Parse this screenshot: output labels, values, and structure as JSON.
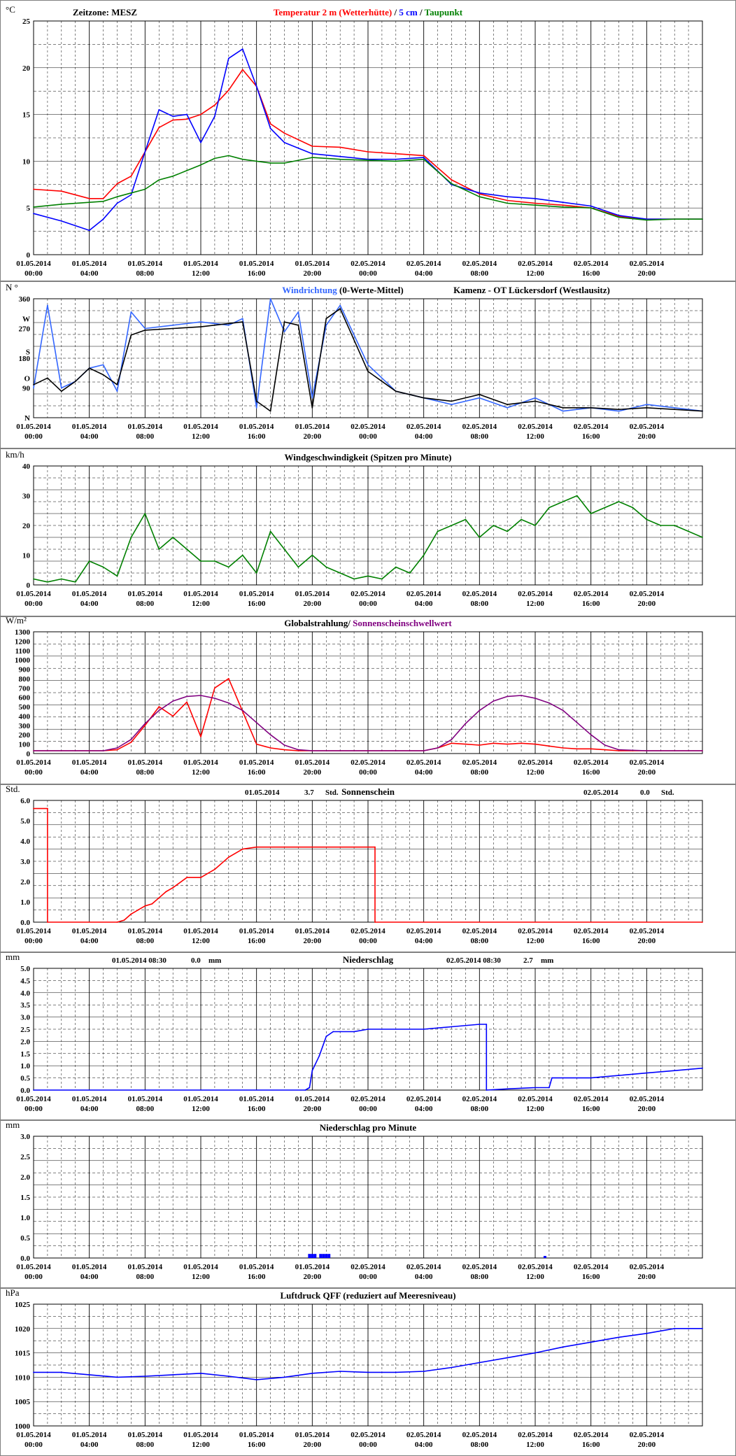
{
  "x_ticks": [
    [
      "01.05.2014",
      "00:00"
    ],
    [
      "01.05.2014",
      "04:00"
    ],
    [
      "01.05.2014",
      "08:00"
    ],
    [
      "01.05.2014",
      "12:00"
    ],
    [
      "01.05.2014",
      "16:00"
    ],
    [
      "01.05.2014",
      "20:00"
    ],
    [
      "02.05.2014",
      "00:00"
    ],
    [
      "02.05.2014",
      "04:00"
    ],
    [
      "02.05.2014",
      "08:00"
    ],
    [
      "02.05.2014",
      "12:00"
    ],
    [
      "02.05.2014",
      "16:00"
    ],
    [
      "02.05.2014",
      "20:00"
    ]
  ],
  "colors": {
    "red": "#ff0000",
    "blue": "#0000ff",
    "lightblue": "#3366ff",
    "green": "#008000",
    "black": "#000000",
    "purple": "#800080",
    "divider": "#808080"
  },
  "chart_data": [
    {
      "id": "temp",
      "type": "line",
      "unit": "°C",
      "header_left": "Zeitzone: MESZ",
      "title_parts": [
        {
          "text": "Temperatur 2 m (Wetterhütte)",
          "color": "#ff0000"
        },
        {
          "text": "  /  ",
          "color": "#000000"
        },
        {
          "text": "5 cm",
          "color": "#0000ff"
        },
        {
          "text": " / ",
          "color": "#000000"
        },
        {
          "text": "Taupunkt",
          "color": "#008000"
        }
      ],
      "ylim": [
        0,
        25
      ],
      "y_ticks": [
        "0",
        "5",
        "10",
        "15",
        "20",
        "25"
      ],
      "y_tick_values": [
        0,
        5,
        10,
        15,
        20,
        25
      ],
      "x_hours": [
        0,
        2,
        4,
        5,
        6,
        7,
        8,
        9,
        10,
        11,
        12,
        13,
        14,
        15,
        16,
        17,
        18,
        20,
        22,
        24,
        26,
        28,
        30,
        32,
        34,
        36,
        38,
        40,
        42,
        44,
        46,
        48
      ],
      "series": [
        {
          "color": "#ff0000",
          "values": [
            7,
            6.8,
            6,
            6,
            7.6,
            8.4,
            11,
            13.6,
            14.4,
            14.5,
            15,
            16,
            17.6,
            19.8,
            18,
            14,
            13,
            11.6,
            11.5,
            11,
            10.8,
            10.6,
            8,
            6.5,
            5.8,
            5.5,
            5.3,
            5,
            4.1,
            3.8,
            3.8,
            3.8
          ]
        },
        {
          "color": "#0000ff",
          "values": [
            4.4,
            3.6,
            2.6,
            3.8,
            5.5,
            6.4,
            11,
            15.5,
            14.8,
            15,
            12,
            14.8,
            21,
            22,
            18,
            13.5,
            12,
            10.8,
            10.5,
            10.2,
            10.2,
            10.4,
            7.5,
            6.6,
            6.2,
            6,
            5.6,
            5.2,
            4.2,
            3.8,
            3.8,
            3.8
          ]
        },
        {
          "color": "#008000",
          "values": [
            5.1,
            5.4,
            5.6,
            5.7,
            6.2,
            6.6,
            7,
            8,
            8.4,
            9,
            9.6,
            10.3,
            10.6,
            10.2,
            10,
            9.8,
            9.8,
            10.4,
            10.2,
            10.1,
            10,
            10.2,
            7.6,
            6.2,
            5.5,
            5.3,
            5.1,
            5,
            4,
            3.7,
            3.8,
            3.8
          ]
        }
      ]
    },
    {
      "id": "winddir",
      "type": "line",
      "unit": "N °",
      "title_parts": [
        {
          "text": "Windrichtung",
          "color": "#3366ff"
        },
        {
          "text": " (0-Werte-Mittel)",
          "color": "#000000"
        }
      ],
      "title_right": "Kamenz - OT Lückersdorf (Westlausitz)",
      "ylim": [
        0,
        360
      ],
      "y_ticks": [
        "N",
        "90",
        "O",
        "180",
        "S",
        "270",
        "W",
        "360"
      ],
      "y_tick_values": [
        0,
        90,
        120,
        180,
        200,
        270,
        300,
        360
      ],
      "x_hours": [
        0,
        1,
        2,
        3,
        4,
        5,
        6,
        7,
        8,
        10,
        12,
        14,
        15,
        16,
        17,
        18,
        19,
        20,
        21,
        22,
        24,
        26,
        28,
        30,
        32,
        34,
        36,
        38,
        40,
        42,
        44,
        46,
        48
      ],
      "series": [
        {
          "color": "#3366ff",
          "values": [
            90,
            340,
            90,
            110,
            150,
            160,
            80,
            320,
            270,
            280,
            290,
            280,
            300,
            30,
            360,
            260,
            320,
            60,
            280,
            340,
            160,
            80,
            60,
            40,
            60,
            30,
            60,
            20,
            30,
            20,
            40,
            30,
            20
          ]
        },
        {
          "color": "#000000",
          "values": [
            100,
            120,
            80,
            110,
            150,
            130,
            100,
            250,
            265,
            270,
            275,
            285,
            290,
            50,
            20,
            290,
            280,
            30,
            300,
            330,
            140,
            80,
            60,
            50,
            70,
            40,
            50,
            30,
            30,
            25,
            30,
            25,
            20
          ]
        }
      ]
    },
    {
      "id": "windspeed",
      "type": "line",
      "unit": "km/h",
      "title_parts": [
        {
          "text": "Windgeschwindigkeit (Spitzen pro Minute)",
          "color": "#000000"
        }
      ],
      "ylim": [
        0,
        40
      ],
      "y_ticks": [
        "0",
        "10",
        "20",
        "30",
        "40"
      ],
      "y_tick_values": [
        0,
        10,
        20,
        30,
        40
      ],
      "x_hours": [
        0,
        1,
        2,
        3,
        4,
        5,
        6,
        7,
        8,
        9,
        10,
        11,
        12,
        13,
        14,
        15,
        16,
        17,
        18,
        19,
        20,
        21,
        22,
        23,
        24,
        25,
        26,
        27,
        28,
        29,
        30,
        31,
        32,
        33,
        34,
        35,
        36,
        37,
        38,
        39,
        40,
        41,
        42,
        43,
        44,
        45,
        46,
        47,
        48
      ],
      "series": [
        {
          "color": "#008000",
          "values": [
            2,
            1,
            2,
            1,
            8,
            6,
            3,
            16,
            24,
            12,
            16,
            12,
            8,
            8,
            6,
            10,
            4,
            18,
            12,
            6,
            10,
            6,
            4,
            2,
            3,
            2,
            6,
            4,
            10,
            18,
            20,
            22,
            16,
            20,
            18,
            22,
            20,
            26,
            28,
            30,
            24,
            26,
            28,
            26,
            22,
            20,
            20,
            18,
            16
          ]
        }
      ]
    },
    {
      "id": "solar",
      "type": "line",
      "unit": "W/m²",
      "title_parts": [
        {
          "text": "Globalstrahlung/ ",
          "color": "#000000"
        },
        {
          "text": "Sonnenscheinschwellwert",
          "color": "#800080"
        }
      ],
      "ylim": [
        0,
        1300
      ],
      "y_ticks": [
        "0",
        "100",
        "200",
        "300",
        "400",
        "500",
        "600",
        "700",
        "800",
        "900",
        "1000",
        "1100",
        "1200",
        "1300"
      ],
      "y_tick_values": [
        0,
        100,
        200,
        300,
        400,
        500,
        600,
        700,
        800,
        900,
        1000,
        1100,
        1200,
        1300
      ],
      "x_hours": [
        0,
        5,
        6,
        7,
        8,
        9,
        10,
        11,
        12,
        13,
        14,
        15,
        16,
        17,
        18,
        19,
        20,
        24,
        28,
        29,
        30,
        31,
        32,
        33,
        34,
        35,
        36,
        37,
        38,
        39,
        40,
        41,
        42,
        44,
        48
      ],
      "series": [
        {
          "color": "#ff0000",
          "values": [
            30,
            30,
            40,
            120,
            300,
            500,
            400,
            550,
            180,
            700,
            800,
            450,
            100,
            60,
            40,
            30,
            30,
            30,
            30,
            60,
            110,
            100,
            90,
            110,
            100,
            110,
            100,
            80,
            60,
            50,
            50,
            40,
            30,
            30,
            30
          ]
        },
        {
          "color": "#800080",
          "values": [
            30,
            30,
            60,
            150,
            320,
            460,
            560,
            610,
            620,
            590,
            540,
            460,
            330,
            200,
            90,
            40,
            30,
            30,
            30,
            60,
            150,
            320,
            460,
            560,
            610,
            620,
            590,
            540,
            460,
            330,
            200,
            90,
            40,
            30,
            30
          ]
        }
      ]
    },
    {
      "id": "sunshine",
      "type": "line",
      "unit": "Std.",
      "title_parts": [
        {
          "text": "Sonnenschein",
          "color": "#000000"
        }
      ],
      "summaries": [
        {
          "date": "01.05.2014",
          "value": "3.7",
          "unit": "Std."
        },
        {
          "date": "02.05.2014",
          "value": "0.0",
          "unit": "Std."
        }
      ],
      "ylim": [
        0,
        6
      ],
      "y_ticks": [
        "0.0",
        "1.0",
        "2.0",
        "3.0",
        "4.0",
        "5.0",
        "6.0"
      ],
      "y_tick_values": [
        0,
        1,
        2,
        3,
        4,
        5,
        6
      ],
      "x_hours": [
        0,
        1,
        1,
        6,
        6.5,
        7,
        7.5,
        8,
        8.5,
        9,
        9.5,
        10,
        11,
        12,
        13,
        14,
        15,
        16,
        18,
        20,
        22,
        24,
        24.5,
        24.5,
        48
      ],
      "series": [
        {
          "color": "#ff0000",
          "values": [
            5.6,
            5.6,
            0,
            0,
            0.1,
            0.4,
            0.6,
            0.8,
            0.9,
            1.2,
            1.5,
            1.7,
            2.2,
            2.2,
            2.6,
            3.2,
            3.6,
            3.7,
            3.7,
            3.7,
            3.7,
            3.7,
            3.7,
            0,
            0
          ]
        }
      ]
    },
    {
      "id": "precip",
      "type": "line",
      "unit": "mm",
      "title_parts": [
        {
          "text": "Niederschlag",
          "color": "#000000"
        }
      ],
      "summaries": [
        {
          "date": "01.05.2014 08:30",
          "value": "0.0",
          "unit": "mm"
        },
        {
          "date": "02.05.2014 08:30",
          "value": "2.7",
          "unit": "mm"
        }
      ],
      "ylim": [
        0,
        5
      ],
      "y_ticks": [
        "0.0",
        "0.5",
        "1.0",
        "1.5",
        "2.0",
        "2.5",
        "3.0",
        "3.5",
        "4.0",
        "4.5",
        "5.0"
      ],
      "y_tick_values": [
        0,
        0.5,
        1,
        1.5,
        2,
        2.5,
        3,
        3.5,
        4,
        4.5,
        5
      ],
      "x_hours": [
        0,
        19.5,
        19.8,
        20,
        20.5,
        21,
        21.5,
        22,
        23,
        24,
        28,
        30,
        32,
        32.5,
        32.5,
        34,
        36,
        37,
        37.2,
        40,
        42,
        44,
        46,
        48
      ],
      "series": [
        {
          "color": "#0000ff",
          "values": [
            0,
            0,
            0.1,
            0.8,
            1.4,
            2.2,
            2.4,
            2.4,
            2.4,
            2.5,
            2.5,
            2.6,
            2.7,
            2.7,
            0,
            0.05,
            0.1,
            0.1,
            0.5,
            0.5,
            0.6,
            0.7,
            0.8,
            0.9
          ]
        }
      ]
    },
    {
      "id": "precip_min",
      "type": "bar",
      "unit": "mm",
      "title_parts": [
        {
          "text": "Niederschlag pro Minute",
          "color": "#000000"
        }
      ],
      "ylim": [
        0,
        3
      ],
      "y_ticks": [
        "0.0",
        "0.5",
        "1.0",
        "1.5",
        "2.0",
        "2.5",
        "3.0"
      ],
      "y_tick_values": [
        0,
        0.5,
        1,
        1.5,
        2,
        2.5,
        3
      ],
      "x_hours": [
        19.8,
        20.0,
        20.2,
        20.6,
        20.8,
        21.0,
        21.2,
        36.7
      ],
      "series": [
        {
          "color": "#0000ff",
          "values": [
            0.1,
            0.1,
            0.1,
            0.1,
            0.1,
            0.1,
            0.1,
            0.05
          ]
        }
      ]
    },
    {
      "id": "pressure",
      "type": "line",
      "unit": "hPa",
      "title_parts": [
        {
          "text": "Luftdruck QFF (reduziert auf Meeresniveau)",
          "color": "#000000"
        }
      ],
      "ylim": [
        1000,
        1025
      ],
      "y_ticks": [
        "1000",
        "1005",
        "1010",
        "1015",
        "1020",
        "1025"
      ],
      "y_tick_values": [
        1000,
        1005,
        1010,
        1015,
        1020,
        1025
      ],
      "x_hours": [
        0,
        2,
        4,
        6,
        8,
        10,
        12,
        14,
        16,
        18,
        20,
        22,
        24,
        26,
        28,
        30,
        32,
        34,
        36,
        38,
        40,
        42,
        44,
        46,
        48
      ],
      "series": [
        {
          "color": "#0000ff",
          "values": [
            1011,
            1011,
            1010.5,
            1010,
            1010.2,
            1010.5,
            1010.8,
            1010.2,
            1009.5,
            1010,
            1010.8,
            1011.2,
            1011,
            1011,
            1011.2,
            1012,
            1013,
            1014,
            1015,
            1016.2,
            1017.2,
            1018.2,
            1019,
            1020,
            1020
          ]
        }
      ]
    }
  ]
}
